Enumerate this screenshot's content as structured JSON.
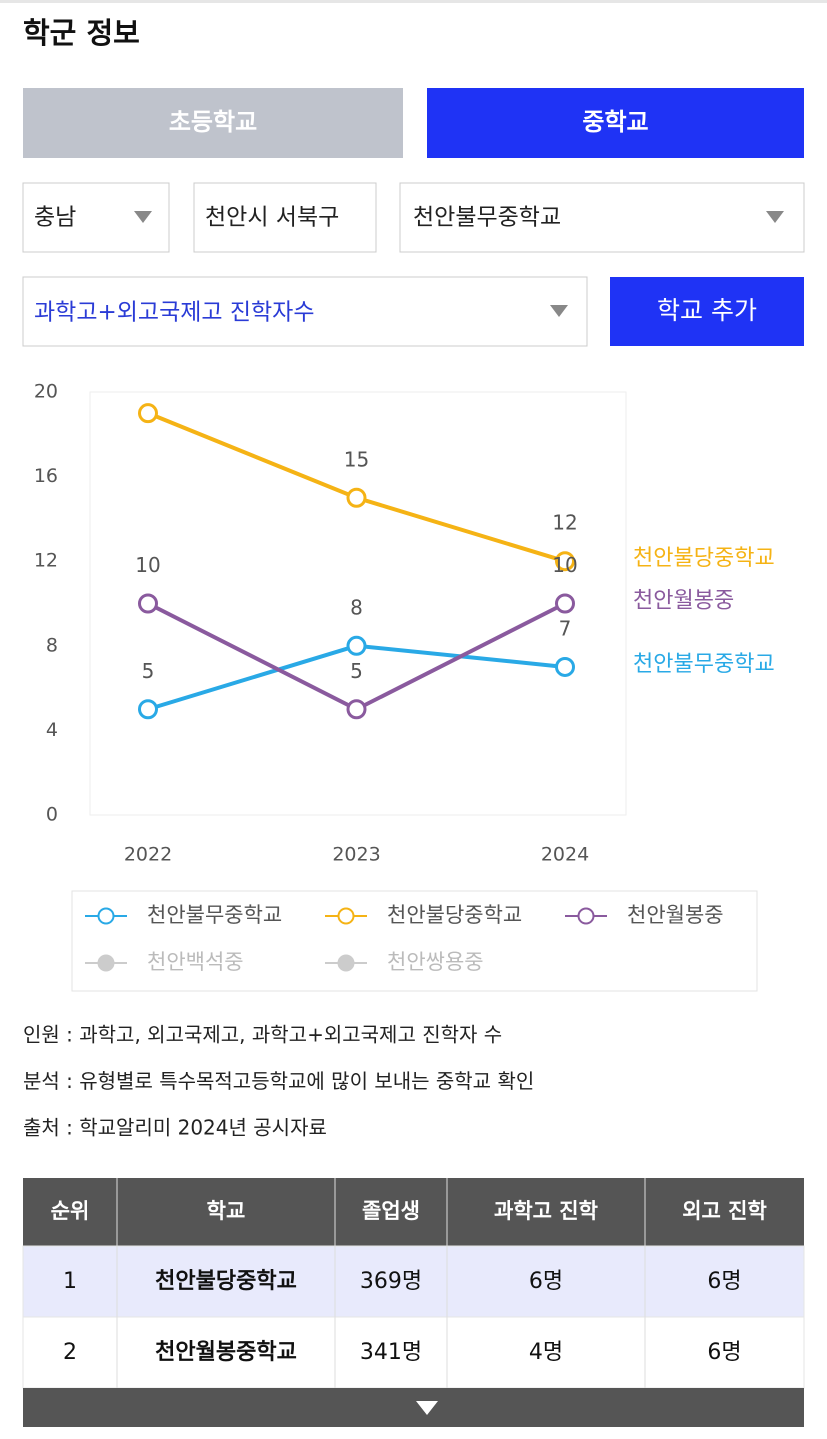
{
  "header": {
    "title": "학군 정보"
  },
  "tabs": [
    {
      "label": "초등학교",
      "active": false
    },
    {
      "label": "중학교",
      "active": true
    }
  ],
  "filters": {
    "region": "충남",
    "district": "천안시 서북구",
    "school": "천안불무중학교",
    "metric": "과학고+외고국제고 진학자수",
    "add_button": "학교 추가"
  },
  "chart_data": {
    "type": "line",
    "categories": [
      "2022",
      "2023",
      "2024"
    ],
    "series": [
      {
        "name": "천안불무중학교",
        "color": "#29a9e6",
        "values": [
          5,
          8,
          7
        ],
        "visible": true
      },
      {
        "name": "천안불당중학교",
        "color": "#f5b315",
        "values": [
          19,
          15,
          12
        ],
        "value_labels": [
          null,
          "15",
          "12"
        ],
        "visible": true
      },
      {
        "name": "천안월봉중",
        "color": "#8a5a9e",
        "values": [
          10,
          5,
          10
        ],
        "visible": true
      },
      {
        "name": "천안백석중",
        "color": "#cccccc",
        "values": [
          null,
          null,
          null
        ],
        "visible": false
      },
      {
        "name": "천안쌍용중",
        "color": "#cccccc",
        "values": [
          null,
          null,
          null
        ],
        "visible": false
      }
    ],
    "ylim": [
      0,
      20
    ],
    "yticks": [
      0,
      4,
      8,
      12,
      16,
      20
    ]
  },
  "notes": [
    "인원 : 과학고, 외고국제고, 과학고+외고국제고 진학자 수",
    "분석 : 유형별로 특수목적고등학교에 많이 보내는 중학교 확인",
    "출처 : 학교알리미 2024년 공시자료"
  ],
  "table": {
    "header": [
      "순위",
      "학교",
      "졸업생",
      "과학고 진학",
      "외고 진학"
    ],
    "rows": [
      [
        "1",
        "천안불당중학교",
        "369명",
        "6명",
        "6명"
      ],
      [
        "2",
        "천안월봉중학교",
        "341명",
        "4명",
        "6명"
      ]
    ]
  }
}
